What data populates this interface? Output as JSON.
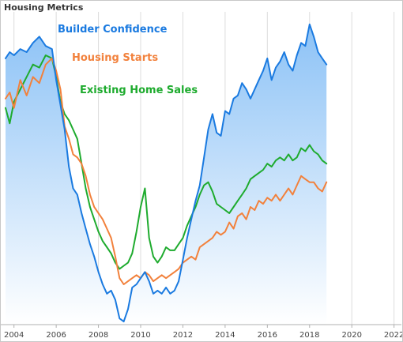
{
  "title": "Housing Metrics",
  "colors": {
    "area_top": "#8cc2f6",
    "area_bottom": "#ffffff",
    "gridline": "#dcdcdc",
    "axis": "#b0b0b0"
  },
  "chart_data": {
    "type": "line",
    "title": "Housing Metrics",
    "xlabel": "",
    "ylabel": "",
    "xlim": [
      2003.6,
      2022.2
    ],
    "ylim": [
      0,
      100
    ],
    "x_ticks": [
      2004,
      2006,
      2008,
      2010,
      2012,
      2014,
      2016,
      2018,
      2020,
      2022
    ],
    "grid": {
      "vertical": true,
      "horizontal": false
    },
    "legend": "inline",
    "series": [
      {
        "name": "Builder Confidence",
        "color": "#1a7ae0",
        "area": true,
        "x": [
          2003.6,
          2003.8,
          2004.0,
          2004.3,
          2004.6,
          2004.9,
          2005.2,
          2005.5,
          2005.8,
          2006.0,
          2006.2,
          2006.4,
          2006.6,
          2006.8,
          2007.0,
          2007.2,
          2007.4,
          2007.6,
          2007.8,
          2008.0,
          2008.2,
          2008.4,
          2008.6,
          2008.8,
          2009.0,
          2009.2,
          2009.4,
          2009.6,
          2009.8,
          2010.0,
          2010.2,
          2010.4,
          2010.6,
          2010.8,
          2011.0,
          2011.2,
          2011.4,
          2011.6,
          2011.8,
          2012.0,
          2012.2,
          2012.4,
          2012.6,
          2012.8,
          2013.0,
          2013.2,
          2013.4,
          2013.6,
          2013.8,
          2014.0,
          2014.2,
          2014.4,
          2014.6,
          2014.8,
          2015.0,
          2015.2,
          2015.4,
          2015.6,
          2015.8,
          2016.0,
          2016.2,
          2016.4,
          2016.6,
          2016.8,
          2017.0,
          2017.2,
          2017.4,
          2017.6,
          2017.8,
          2018.0,
          2018.2,
          2018.4,
          2018.6,
          2018.8
        ],
        "y": [
          86,
          88,
          87,
          89,
          88,
          91,
          93,
          90,
          89,
          79,
          71,
          63,
          51,
          44,
          42,
          36,
          31,
          26,
          22,
          17,
          13,
          10,
          11,
          8,
          2,
          1,
          5,
          12,
          13,
          15,
          17,
          14,
          10,
          11,
          10,
          12,
          10,
          11,
          14,
          21,
          28,
          34,
          40,
          45,
          54,
          63,
          68,
          62,
          61,
          69,
          68,
          73,
          74,
          78,
          76,
          73,
          76,
          79,
          82,
          86,
          79,
          83,
          85,
          88,
          84,
          82,
          87,
          91,
          90,
          97,
          93,
          88,
          86,
          84
        ]
      },
      {
        "name": "Housing Starts",
        "color": "#f2813c",
        "area": false,
        "x": [
          2003.6,
          2003.8,
          2004.0,
          2004.3,
          2004.6,
          2004.9,
          2005.2,
          2005.5,
          2005.8,
          2006.0,
          2006.2,
          2006.4,
          2006.6,
          2006.8,
          2007.0,
          2007.2,
          2007.4,
          2007.6,
          2007.8,
          2008.0,
          2008.2,
          2008.4,
          2008.6,
          2008.8,
          2009.0,
          2009.2,
          2009.4,
          2009.6,
          2009.8,
          2010.0,
          2010.2,
          2010.4,
          2010.6,
          2010.8,
          2011.0,
          2011.2,
          2011.4,
          2011.6,
          2011.8,
          2012.0,
          2012.2,
          2012.4,
          2012.6,
          2012.8,
          2013.0,
          2013.2,
          2013.4,
          2013.6,
          2013.8,
          2014.0,
          2014.2,
          2014.4,
          2014.6,
          2014.8,
          2015.0,
          2015.2,
          2015.4,
          2015.6,
          2015.8,
          2016.0,
          2016.2,
          2016.4,
          2016.6,
          2016.8,
          2017.0,
          2017.2,
          2017.4,
          2017.6,
          2017.8,
          2018.0,
          2018.2,
          2018.4,
          2018.6,
          2018.8
        ],
        "y": [
          73,
          75,
          70,
          79,
          74,
          80,
          78,
          84,
          86,
          82,
          76,
          64,
          60,
          55,
          54,
          52,
          48,
          42,
          38,
          36,
          34,
          31,
          28,
          22,
          15,
          13,
          14,
          15,
          16,
          15,
          17,
          16,
          14,
          15,
          16,
          15,
          16,
          17,
          18,
          20,
          21,
          22,
          21,
          25,
          26,
          27,
          28,
          30,
          29,
          30,
          33,
          31,
          35,
          36,
          34,
          38,
          37,
          40,
          39,
          41,
          40,
          42,
          40,
          42,
          44,
          42,
          45,
          48,
          47,
          46,
          46,
          44,
          43,
          46
        ]
      },
      {
        "name": "Existing Home Sales",
        "color": "#1eab2e",
        "area": false,
        "x": [
          2003.6,
          2003.8,
          2004.0,
          2004.3,
          2004.6,
          2004.9,
          2005.2,
          2005.5,
          2005.8,
          2006.0,
          2006.2,
          2006.4,
          2006.6,
          2006.8,
          2007.0,
          2007.2,
          2007.4,
          2007.6,
          2007.8,
          2008.0,
          2008.2,
          2008.4,
          2008.6,
          2008.8,
          2009.0,
          2009.2,
          2009.4,
          2009.6,
          2009.8,
          2010.0,
          2010.2,
          2010.4,
          2010.6,
          2010.8,
          2011.0,
          2011.2,
          2011.4,
          2011.6,
          2011.8,
          2012.0,
          2012.2,
          2012.4,
          2012.6,
          2012.8,
          2013.0,
          2013.2,
          2013.4,
          2013.6,
          2013.8,
          2014.0,
          2014.2,
          2014.4,
          2014.6,
          2014.8,
          2015.0,
          2015.2,
          2015.4,
          2015.6,
          2015.8,
          2016.0,
          2016.2,
          2016.4,
          2016.6,
          2016.8,
          2017.0,
          2017.2,
          2017.4,
          2017.6,
          2017.8,
          2018.0,
          2018.2,
          2018.4,
          2018.6,
          2018.8
        ],
        "y": [
          70,
          65,
          72,
          76,
          80,
          84,
          83,
          87,
          86,
          80,
          72,
          68,
          66,
          63,
          60,
          52,
          44,
          38,
          34,
          30,
          27,
          25,
          23,
          20,
          18,
          19,
          20,
          23,
          30,
          38,
          44,
          28,
          22,
          20,
          22,
          25,
          24,
          24,
          26,
          28,
          32,
          35,
          38,
          42,
          45,
          46,
          43,
          39,
          38,
          37,
          36,
          38,
          40,
          42,
          44,
          47,
          48,
          49,
          50,
          52,
          51,
          53,
          54,
          53,
          55,
          53,
          54,
          57,
          56,
          58,
          56,
          55,
          53,
          52
        ]
      }
    ]
  }
}
